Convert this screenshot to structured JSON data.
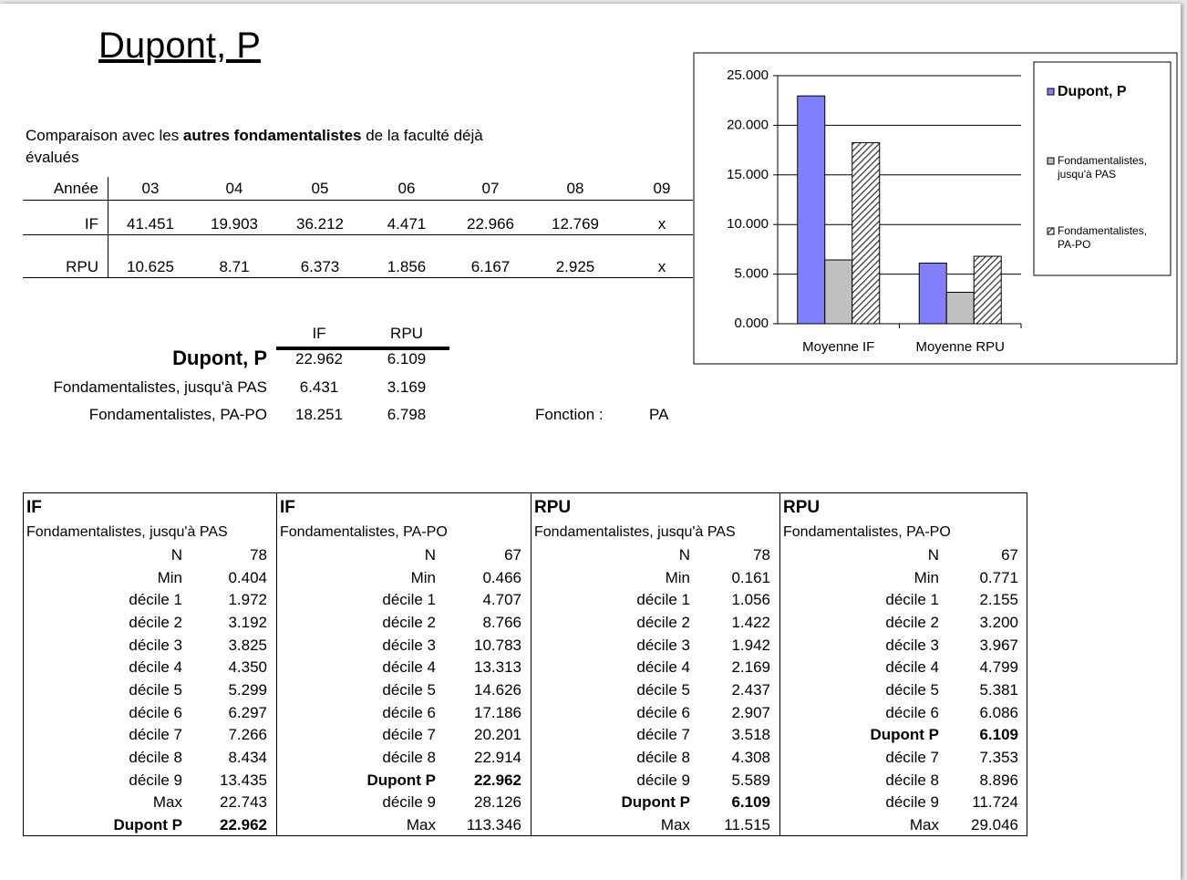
{
  "title": "Dupont, P",
  "intro": [
    "Comparaison avec les ",
    "autres fondamentalistes",
    " de la faculté déjà évalués"
  ],
  "years": {
    "header": [
      "Année",
      "03",
      "04",
      "05",
      "06",
      "07",
      "08",
      "09"
    ],
    "rows": [
      [
        "IF",
        "41.451",
        "19.903",
        "36.212",
        "4.471",
        "22.966",
        "12.769",
        "x"
      ],
      [
        "RPU",
        "10.625",
        "8.71",
        "6.373",
        "1.856",
        "6.167",
        "2.925",
        "x"
      ]
    ]
  },
  "summary": {
    "header": [
      "IF",
      "RPU"
    ],
    "rows": [
      [
        "Dupont, P",
        "22.962",
        "6.109"
      ],
      [
        "Fondamentalistes, jusqu'à PAS",
        "6.431",
        "3.169"
      ],
      [
        "Fondamentalistes, PA-PO",
        "18.251",
        "6.798"
      ]
    ]
  },
  "fonction": {
    "label": "Fonction :",
    "value": "PA"
  },
  "chart_data": {
    "type": "bar",
    "categories": [
      "Moyenne IF",
      "Moyenne RPU"
    ],
    "series": [
      {
        "name": "Dupont, P",
        "color": "#8080ff",
        "values": [
          22.962,
          6.109
        ]
      },
      {
        "name": "Fondamentalistes, jusqu'à PAS",
        "color": "#c0c0c0",
        "values": [
          6.431,
          3.169
        ]
      },
      {
        "name": "Fondamentalistes, PA-PO",
        "color": "#ffffff",
        "pattern": "diagonal-hatch",
        "values": [
          18.251,
          6.798
        ]
      }
    ],
    "ylim": [
      0,
      25
    ],
    "yticks": [
      {
        "value": 0,
        "label": "0.000"
      },
      {
        "value": 5,
        "label": "5.000"
      },
      {
        "value": 10,
        "label": "10.000"
      },
      {
        "value": 15,
        "label": "15.000"
      },
      {
        "value": 20,
        "label": "20.000"
      },
      {
        "value": 25,
        "label": "25.000"
      }
    ],
    "grid": true,
    "legend": "right"
  },
  "deciles": [
    {
      "title": "IF",
      "subtitle": "Fondamentalistes, jusqu'à PAS",
      "highlight_row": 12,
      "rows": [
        [
          "N",
          "78"
        ],
        [
          "Min",
          "0.404"
        ],
        [
          "décile 1",
          "1.972"
        ],
        [
          "décile 2",
          "3.192"
        ],
        [
          "décile 3",
          "3.825"
        ],
        [
          "décile 4",
          "4.350"
        ],
        [
          "décile 5",
          "5.299"
        ],
        [
          "décile 6",
          "6.297"
        ],
        [
          "décile 7",
          "7.266"
        ],
        [
          "décile 8",
          "8.434"
        ],
        [
          "décile 9",
          "13.435"
        ],
        [
          "Max",
          "22.743"
        ],
        [
          "Dupont P",
          "22.962"
        ]
      ]
    },
    {
      "title": "IF",
      "subtitle": "Fondamentalistes, PA-PO",
      "highlight_row": 10,
      "rows": [
        [
          "N",
          "67"
        ],
        [
          "Min",
          "0.466"
        ],
        [
          "décile 1",
          "4.707"
        ],
        [
          "décile 2",
          "8.766"
        ],
        [
          "décile 3",
          "10.783"
        ],
        [
          "décile 4",
          "13.313"
        ],
        [
          "décile 5",
          "14.626"
        ],
        [
          "décile 6",
          "17.186"
        ],
        [
          "décile 7",
          "20.201"
        ],
        [
          "décile 8",
          "22.914"
        ],
        [
          "Dupont P",
          "22.962"
        ],
        [
          "décile 9",
          "28.126"
        ],
        [
          "Max",
          "113.346"
        ]
      ]
    },
    {
      "title": "RPU",
      "subtitle": "Fondamentalistes, jusqu'à PAS",
      "highlight_row": 11,
      "rows": [
        [
          "N",
          "78"
        ],
        [
          "Min",
          "0.161"
        ],
        [
          "décile 1",
          "1.056"
        ],
        [
          "décile 2",
          "1.422"
        ],
        [
          "décile 3",
          "1.942"
        ],
        [
          "décile 4",
          "2.169"
        ],
        [
          "décile 5",
          "2.437"
        ],
        [
          "décile 6",
          "2.907"
        ],
        [
          "décile 7",
          "3.518"
        ],
        [
          "décile 8",
          "4.308"
        ],
        [
          "décile 9",
          "5.589"
        ],
        [
          "Dupont P",
          "6.109"
        ],
        [
          "Max",
          "11.515"
        ]
      ]
    },
    {
      "title": "RPU",
      "subtitle": "Fondamentalistes, PA-PO",
      "highlight_row": 8,
      "rows": [
        [
          "N",
          "67"
        ],
        [
          "Min",
          "0.771"
        ],
        [
          "décile 1",
          "2.155"
        ],
        [
          "décile 2",
          "3.200"
        ],
        [
          "décile 3",
          "3.967"
        ],
        [
          "décile 4",
          "4.799"
        ],
        [
          "décile 5",
          "5.381"
        ],
        [
          "décile 6",
          "6.086"
        ],
        [
          "Dupont P",
          "6.109"
        ],
        [
          "décile 7",
          "7.353"
        ],
        [
          "décile 8",
          "8.896"
        ],
        [
          "décile 9",
          "11.724"
        ],
        [
          "Max",
          "29.046"
        ]
      ]
    }
  ]
}
